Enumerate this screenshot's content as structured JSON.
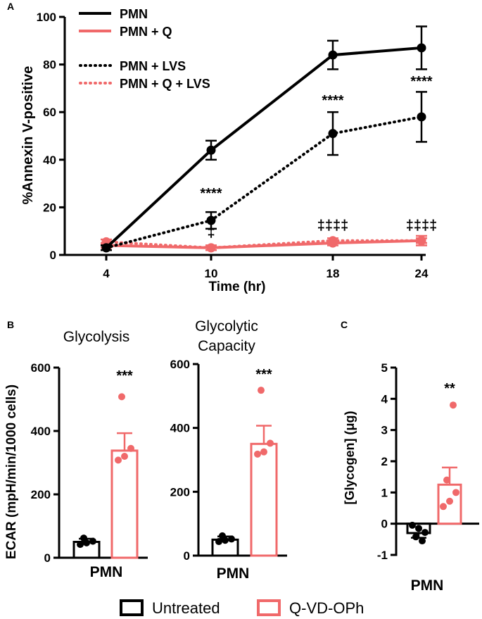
{
  "colors": {
    "black": "#000000",
    "salmon": "#F0696A"
  },
  "chart_data": [
    {
      "id": "A",
      "panel_label": "A",
      "type": "line",
      "xlabel": "Time (hr)",
      "ylabel": "%Annexin V-positive",
      "x": [
        4,
        10,
        18,
        24
      ],
      "x_tick_labels": [
        "4",
        "10",
        "18",
        "24"
      ],
      "ylim": [
        0,
        100
      ],
      "yticks": [
        0,
        20,
        40,
        60,
        80,
        100
      ],
      "series": [
        {
          "name": "PMN",
          "color": "#000000",
          "dash": "solid",
          "values": [
            3,
            44,
            84,
            87
          ],
          "errors": [
            1,
            4,
            6,
            9
          ]
        },
        {
          "name": "PMN + Q",
          "color": "#F0696A",
          "dash": "solid",
          "values": [
            4,
            3,
            5,
            6
          ],
          "errors": [
            1,
            1,
            1,
            2
          ]
        },
        {
          "name": "PMN + LVS",
          "color": "#000000",
          "dash": "dotted",
          "values": [
            3,
            14.5,
            51,
            58
          ],
          "errors": [
            1,
            3.5,
            9,
            10.5
          ]
        },
        {
          "name": "PMN + Q + LVS",
          "color": "#F0696A",
          "dash": "dotted",
          "values": [
            5.5,
            3,
            6,
            6
          ],
          "errors": [
            1,
            1,
            1,
            1
          ]
        }
      ],
      "annotations": [
        {
          "x": 10,
          "y": 24,
          "text": "****"
        },
        {
          "x": 10,
          "y": 7.5,
          "text": "‡"
        },
        {
          "x": 18,
          "y": 63,
          "text": "****"
        },
        {
          "x": 18,
          "y": 10.5,
          "text": "‡‡‡‡"
        },
        {
          "x": 24,
          "y": 71,
          "text": "****"
        },
        {
          "x": 24,
          "y": 10.5,
          "text": "‡‡‡‡"
        }
      ]
    },
    {
      "id": "B1",
      "panel_label": "B",
      "type": "bar",
      "title": "Glycolysis",
      "ylabel": "ECAR (mpH/min/1000 cells)",
      "xlabel": "PMN",
      "ylim": [
        0,
        600
      ],
      "yticks": [
        0,
        200,
        400,
        600
      ],
      "categories": [
        "Untreated",
        "Q-VD-OPh"
      ],
      "values": [
        50,
        338
      ],
      "errors": [
        10,
        55
      ],
      "points": [
        [
          42,
          47,
          52,
          62
        ],
        [
          308,
          320,
          345,
          508
        ]
      ],
      "significance": "***"
    },
    {
      "id": "B2",
      "type": "bar",
      "title": "Glycolytic Capacity",
      "xlabel": "PMN",
      "ylim": [
        0,
        600
      ],
      "yticks": [
        0,
        200,
        400,
        600
      ],
      "categories": [
        "Untreated",
        "Q-VD-OPh"
      ],
      "values": [
        50,
        350
      ],
      "errors": [
        10,
        57
      ],
      "points": [
        [
          44,
          48,
          52,
          62
        ],
        [
          318,
          325,
          352,
          518
        ]
      ],
      "significance": "***"
    },
    {
      "id": "C",
      "panel_label": "C",
      "type": "bar",
      "ylabel": "[Glycogen] (μg)",
      "xlabel": "PMN",
      "ylim": [
        -1,
        5
      ],
      "yticks": [
        -1,
        0,
        1,
        2,
        3,
        4,
        5
      ],
      "categories": [
        "Untreated",
        "Q-VD-OPh"
      ],
      "values": [
        -0.3,
        1.25
      ],
      "errors": [
        0.15,
        0.55
      ],
      "points": [
        [
          -0.05,
          -0.15,
          -0.28,
          -0.42,
          -0.55
        ],
        [
          0.55,
          0.72,
          1.0,
          1.4,
          3.8
        ]
      ],
      "significance": "**"
    }
  ],
  "legend_B": {
    "items": [
      {
        "label": "Untreated",
        "color": "#000000"
      },
      {
        "label": "Q-VD-OPh",
        "color": "#F0696A"
      }
    ]
  }
}
